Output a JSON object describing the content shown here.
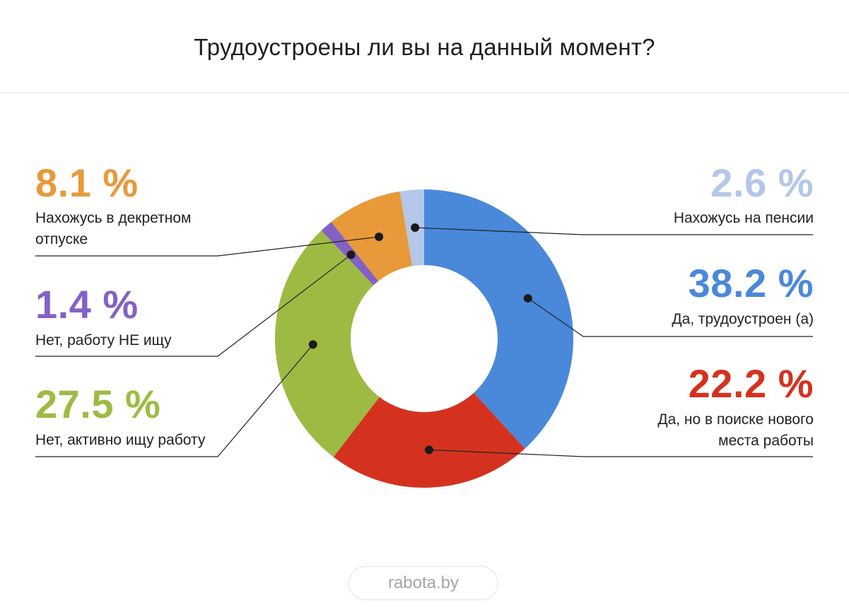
{
  "title": "Трудоустроены ли вы на данный момент?",
  "footer": {
    "brand": "rabota.by"
  },
  "colors": {
    "employed": "#4a88d9",
    "searching_new": "#d4321f",
    "active_search": "#9dbb43",
    "not_searching": "#8461c4",
    "maternity": "#e8993a",
    "retired": "#b3c7e8"
  },
  "labels": {
    "maternity": {
      "pct": "8.1 %",
      "line1": "Нахожусь в декретном",
      "line2": "отпуске"
    },
    "not_searching": {
      "pct": "1.4 %",
      "line1": "Нет, работу НЕ ищу"
    },
    "active_search": {
      "pct": "27.5 %",
      "line1": "Нет, активно ищу работу"
    },
    "retired": {
      "pct": "2.6 %",
      "line1": "Нахожусь на пенсии"
    },
    "employed": {
      "pct": "38.2 %",
      "line1": "Да, трудоустроен (а)"
    },
    "searching_new": {
      "pct": "22.2 %",
      "line1": "Да, но в поиске нового",
      "line2": "места работы"
    }
  },
  "chart_data": {
    "type": "pie",
    "title": "Трудоустроены ли вы на данный момент?",
    "donut": true,
    "unit": "%",
    "slices": [
      {
        "key": "employed",
        "label": "Да, трудоустроен (а)",
        "value": 38.2,
        "color": "#4a88d9"
      },
      {
        "key": "searching_new",
        "label": "Да, но в поиске нового места работы",
        "value": 22.2,
        "color": "#d4321f"
      },
      {
        "key": "active_search",
        "label": "Нет, активно ищу работу",
        "value": 27.5,
        "color": "#9dbb43"
      },
      {
        "key": "not_searching",
        "label": "Нет, работу НЕ ищу",
        "value": 1.4,
        "color": "#8461c4"
      },
      {
        "key": "maternity",
        "label": "Нахожусь в декретном отпуске",
        "value": 8.1,
        "color": "#e8993a"
      },
      {
        "key": "retired",
        "label": "Нахожусь на пенсии",
        "value": 2.6,
        "color": "#b3c7e8"
      }
    ]
  }
}
